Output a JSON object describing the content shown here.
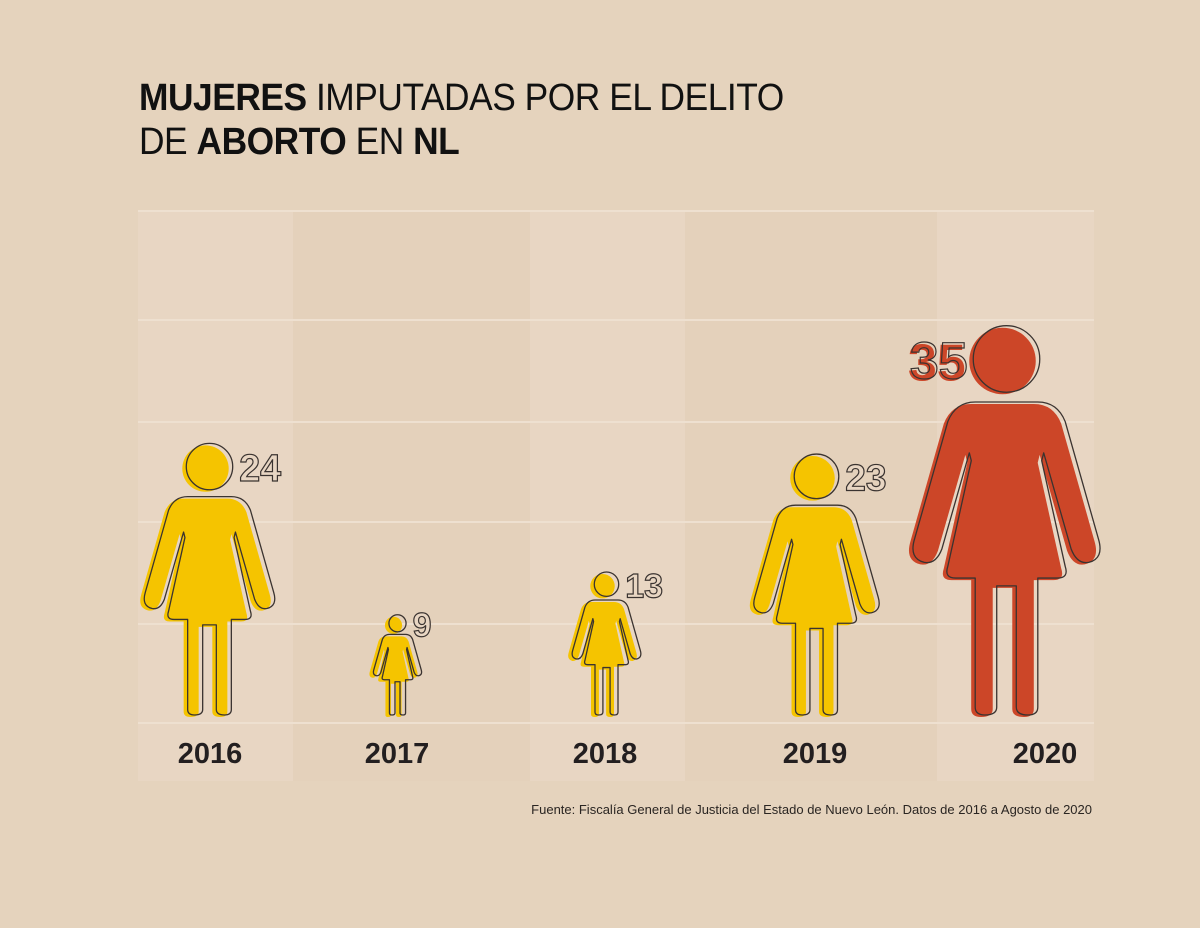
{
  "title": {
    "line1": [
      {
        "text": "MUJERES",
        "bold": true
      },
      {
        "text": " IMPUTADAS POR EL DELITO",
        "bold": false
      }
    ],
    "line2": [
      {
        "text": "DE ",
        "bold": false
      },
      {
        "text": "ABORTO",
        "bold": true
      },
      {
        "text": " EN ",
        "bold": false
      },
      {
        "text": "NL",
        "bold": true
      }
    ]
  },
  "source": "Fuente: Fiscalía General de Justicia del Estado de Nuevo León. Datos de 2016 a Agosto de 2020",
  "colors": {
    "background": "#e5d3bd",
    "column_light": "#e8d6c3",
    "column_dark": "#e4d1bb",
    "gridline": "#eee0d0",
    "yellow": "#f5c400",
    "red": "#cc4628",
    "outline": "#3a3330",
    "label_text": "#231f20"
  },
  "chart_data": {
    "type": "bar",
    "title": "MUJERES IMPUTADAS POR EL DELITO DE ABORTO EN NL",
    "xlabel": "",
    "ylabel": "",
    "categories": [
      "2016",
      "2017",
      "2018",
      "2019",
      "2020"
    ],
    "values": [
      24,
      9,
      13,
      23,
      35
    ],
    "value_labels": [
      "24",
      "9",
      "13",
      "23",
      "35"
    ],
    "highlight": [
      "2020"
    ],
    "mark": "woman-pictogram scaled by value",
    "grid": true,
    "ylim": [
      0,
      45
    ]
  }
}
